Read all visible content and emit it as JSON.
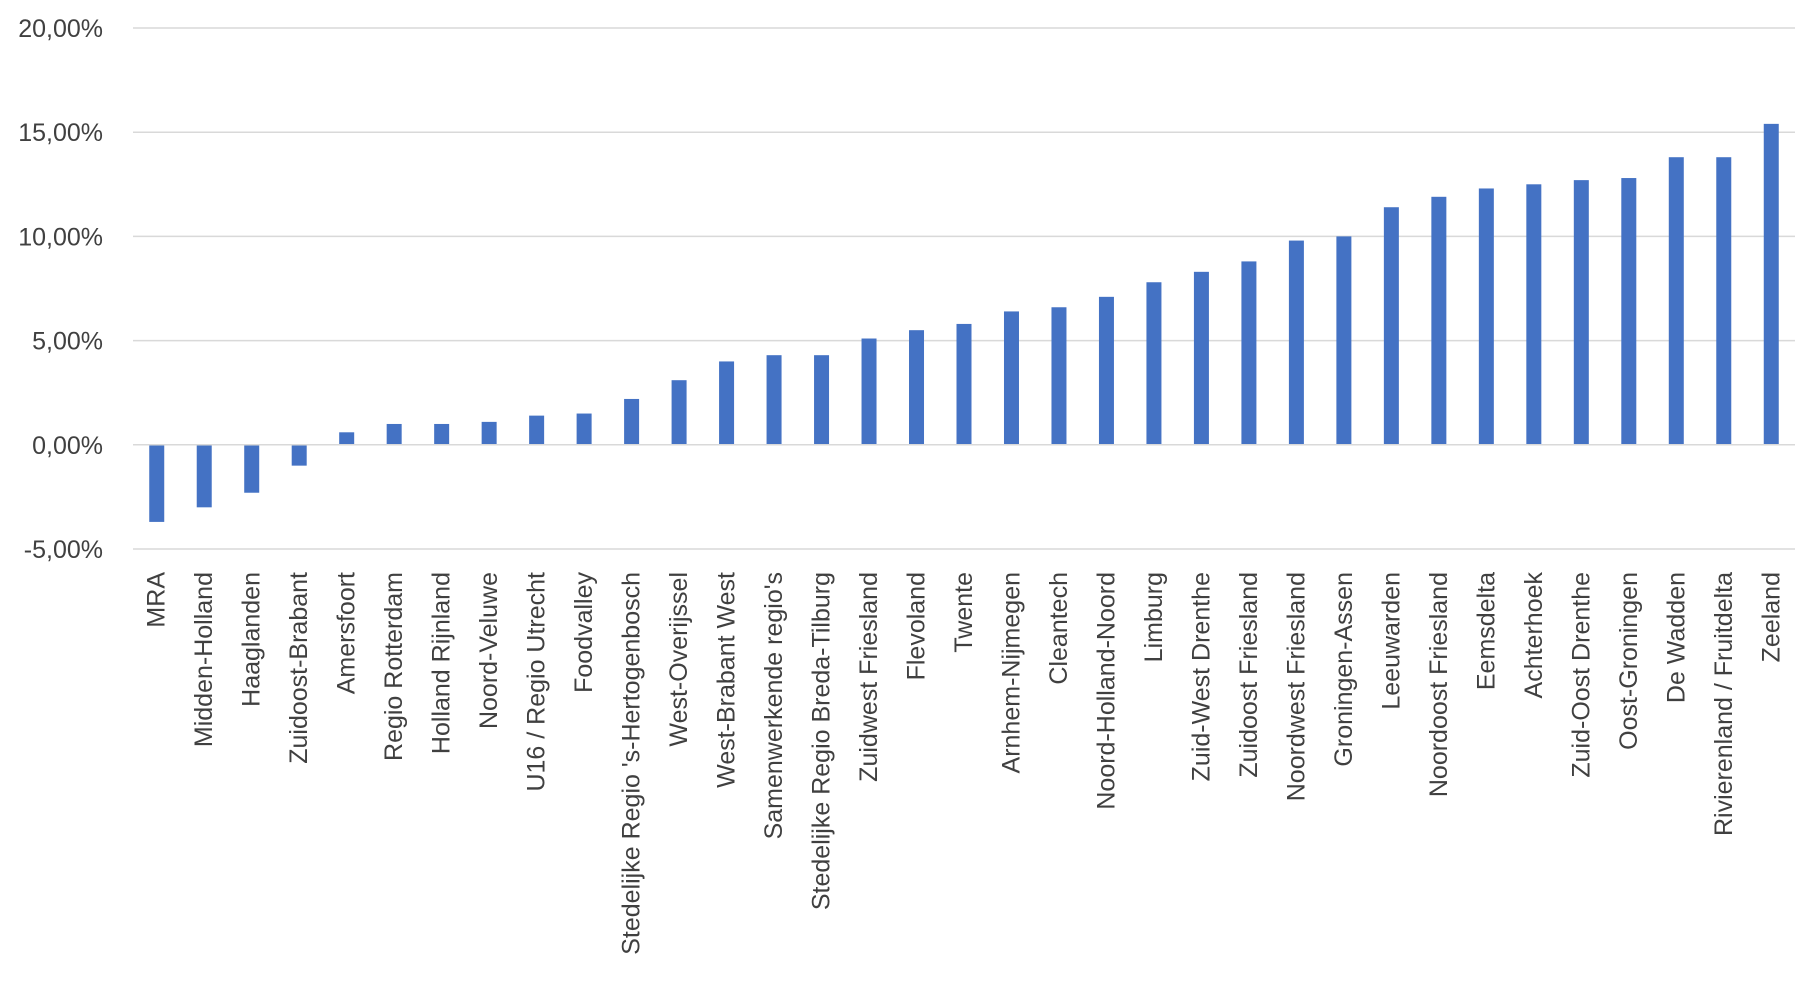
{
  "chart_data": {
    "type": "bar",
    "title": "",
    "xlabel": "",
    "ylabel": "",
    "ylim": [
      -5,
      20
    ],
    "yticks": [
      -5,
      0,
      5,
      10,
      15,
      20
    ],
    "ytick_labels": [
      "-5,00%",
      "0,00%",
      "5,00%",
      "10,00%",
      "15,00%",
      "20,00%"
    ],
    "grid": true,
    "bar_color": "#4472c4",
    "categories": [
      "MRA",
      "Midden-Holland",
      "Haaglanden",
      "Zuidoost-Brabant",
      "Amersfoort",
      "Regio Rotterdam",
      "Holland Rijnland",
      "Noord-Veluwe",
      "U16 / Regio Utrecht",
      "Foodvalley",
      "Stedelijke Regio 's-Hertogenbosch",
      "West-Overijssel",
      "West-Brabant West",
      "Samenwerkende regio's",
      "Stedelijke Regio Breda-Tilburg",
      "Zuidwest Friesland",
      "Flevoland",
      "Twente",
      "Arnhem-Nijmegen",
      "Cleantech",
      "Noord-Holland-Noord",
      "Limburg",
      "Zuid-West Drenthe",
      "Zuidoost Friesland",
      "Noordwest Friesland",
      "Groningen-Assen",
      "Leeuwarden",
      "Noordoost Friesland",
      "Eemsdelta",
      "Achterhoek",
      "Zuid-Oost Drenthe",
      "Oost-Groningen",
      "De Wadden",
      "Rivierenland / Fruitdelta",
      "Zeeland"
    ],
    "values": [
      -3.7,
      -3.0,
      -2.3,
      -1.0,
      0.6,
      1.0,
      1.0,
      1.1,
      1.4,
      1.5,
      2.2,
      3.1,
      4.0,
      4.3,
      4.3,
      5.1,
      5.5,
      5.8,
      6.4,
      6.6,
      7.1,
      7.8,
      8.3,
      8.8,
      9.8,
      10.0,
      11.4,
      11.9,
      12.3,
      12.5,
      12.7,
      12.8,
      13.8,
      13.8,
      15.4
    ]
  }
}
